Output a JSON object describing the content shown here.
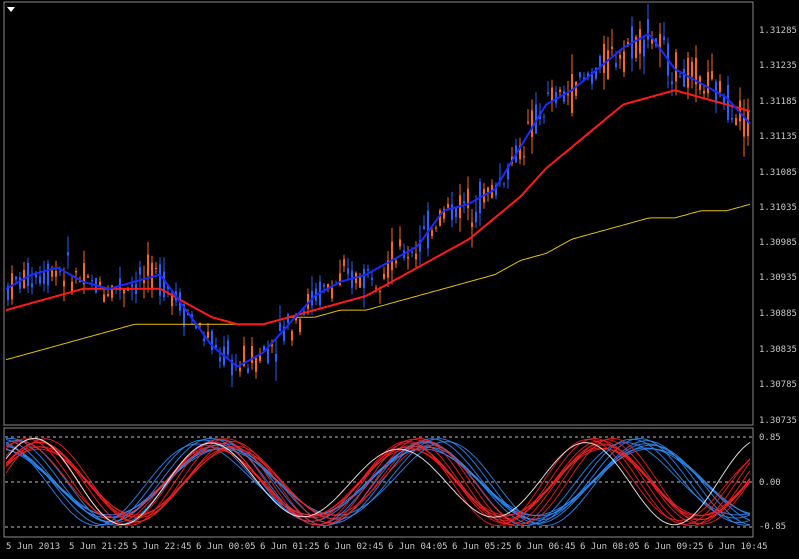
{
  "window": {
    "menu_icon": "triangle-down-icon"
  },
  "colors": {
    "background": "#000000",
    "frame": "#8a8a8a",
    "bull_candle": "#ff6a00",
    "bear_candle": "#1e64ff",
    "ma_fast": "#1a2bff",
    "ma_slow": "#ff1a1a",
    "ma_long": "#e8c000",
    "osc_red": "#ff2020",
    "osc_blue": "#2f8fff",
    "osc_white": "#ffffff",
    "text": "#c8c8c8"
  },
  "price_axis": {
    "labels": [
      "1.31285",
      "1.31235",
      "1.31185",
      "1.31135",
      "1.31085",
      "1.31035",
      "1.30985",
      "1.30935",
      "1.30885",
      "1.30835",
      "1.30785",
      "1.30735"
    ]
  },
  "indicator_axis": {
    "labels": [
      "0.85",
      "0.00",
      "-0.85"
    ]
  },
  "time_axis": {
    "labels": [
      "5 Jun 2013",
      "5 Jun 21:25",
      "5 Jun 22:45",
      "6 Jun 00:05",
      "6 Jun 01:25",
      "6 Jun 02:45",
      "6 Jun 04:05",
      "6 Jun 05:25",
      "6 Jun 06:45",
      "6 Jun 08:05",
      "6 Jun 09:25",
      "6 Jun 10:45"
    ]
  },
  "chart_data": {
    "type": "line",
    "price_range": [
      1.30735,
      1.31285
    ],
    "indicator_range": [
      -0.85,
      0.85
    ],
    "ma_fast": [
      1.3092,
      1.3094,
      1.3095,
      1.3093,
      1.3092,
      1.3093,
      1.3094,
      1.3089,
      1.3084,
      1.3081,
      1.3083,
      1.3087,
      1.3091,
      1.3093,
      1.3094,
      1.3096,
      1.3098,
      1.3103,
      1.3104,
      1.3106,
      1.3112,
      1.3118,
      1.312,
      1.3123,
      1.3126,
      1.3128,
      1.3123,
      1.3121,
      1.3119,
      1.3115
    ],
    "ma_slow": [
      1.3089,
      1.309,
      1.3091,
      1.3092,
      1.3092,
      1.3092,
      1.3092,
      1.309,
      1.3088,
      1.3087,
      1.3087,
      1.3088,
      1.3089,
      1.309,
      1.3091,
      1.3093,
      1.3095,
      1.3097,
      1.3099,
      1.3102,
      1.3105,
      1.3109,
      1.3112,
      1.3115,
      1.3118,
      1.3119,
      1.312,
      1.3119,
      1.3118,
      1.3117
    ],
    "ma_long": [
      1.3082,
      1.3083,
      1.3084,
      1.3085,
      1.3086,
      1.3087,
      1.3087,
      1.3087,
      1.3087,
      1.3087,
      1.3087,
      1.3088,
      1.3088,
      1.3089,
      1.3089,
      1.309,
      1.3091,
      1.3092,
      1.3093,
      1.3094,
      1.3096,
      1.3097,
      1.3099,
      1.31,
      1.3101,
      1.3102,
      1.3102,
      1.3103,
      1.3103,
      1.3104
    ]
  }
}
